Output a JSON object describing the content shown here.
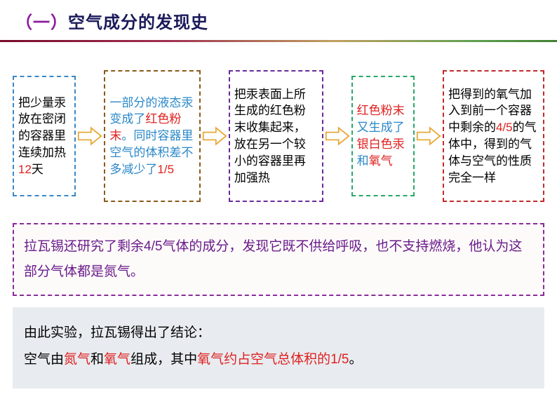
{
  "header": {
    "number": "（一）",
    "title": "空气成分的发现史",
    "title_color": "#1a1a5a",
    "number_color": "#8b1a9e"
  },
  "flow": {
    "boxes": [
      {
        "html": "把少量汞放在密闭的容器里连续加热<span class='red'>12</span>天",
        "border_color": "#3a88c8"
      },
      {
        "html": "<span style='color:#2a88c8'>一部分的液态汞变成了</span><span class='red'>红色粉末</span><span style='color:#2a88c8'>。同时容器里空气的体积差不多减少了</span><span class='red'>1/5</span>",
        "border_color": "#8a5a1a"
      },
      {
        "html": "把汞表面上所生成的红色粉末收集起来，放在另一个较小的容器里再加强热",
        "border_color": "#6a2a9a"
      },
      {
        "html": "<span class='red'>红色粉末</span><span style='color:#2a88c8'>又生成了</span><span class='red'>银白色汞</span><span style='color:#2a88c8'>和</span><span class='red'>氧气</span>",
        "border_color": "#2aa868"
      },
      {
        "html": "把得到的氧气加入到前一个容器中剩余的<span class='red'>4/5</span>的气体中，得到的气体与空气的性质完全一样",
        "border_color": "#c22a2a"
      }
    ],
    "arrow_color": "#e8a838"
  },
  "purple_note": {
    "text": "拉瓦锡还研究了剩余4/5气体的成分，发现它既不供给呼吸，也不支持燃烧，他认为这部分气体都是氮气。",
    "color": "#6a1a8a",
    "border_color": "#8a2a9a"
  },
  "conclusion": {
    "line1": "由此实验，拉瓦锡得出了结论：",
    "line2_html": "空气由<span class='red'>氮气</span>和<span class='red'>氧气</span>组成，其中<span class='red'>氧气约占空气总体积的1/5</span>。",
    "bg_color": "#e8ecf0"
  }
}
